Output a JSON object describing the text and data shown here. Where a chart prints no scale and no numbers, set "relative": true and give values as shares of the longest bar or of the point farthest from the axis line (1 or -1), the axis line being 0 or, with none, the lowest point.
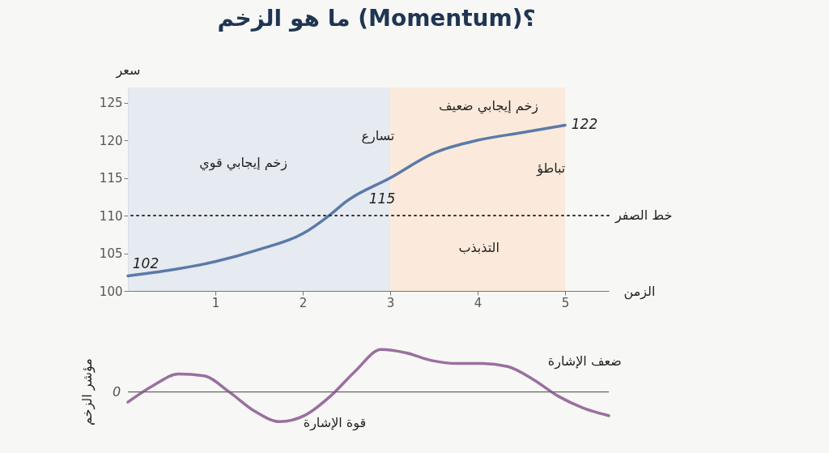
{
  "chart_data": [
    {
      "type": "line",
      "title": "ما هو الزخم (Momentum)؟",
      "xlabel": "الزمن",
      "ylabel": "سعر",
      "x": [
        0,
        0.5,
        1,
        1.5,
        2,
        2.3,
        2.5,
        3,
        3.5,
        4,
        4.5,
        5
      ],
      "series": [
        {
          "color": "#5b7aa8",
          "values": [
            102,
            102.8,
            103.9,
            105.5,
            107.6,
            110,
            111.9,
            115,
            118.3,
            120,
            121,
            122
          ]
        }
      ],
      "xlim": [
        0,
        5.5
      ],
      "ylim": [
        100,
        127
      ],
      "xticks": [
        1,
        2,
        3,
        4,
        5
      ],
      "yticks": [
        100,
        105,
        110,
        115,
        120,
        125
      ],
      "bands": [
        {
          "axis": "x",
          "from": 0,
          "to": 3,
          "color": "#e3e8f1"
        },
        {
          "axis": "x",
          "from": 3,
          "to": 5,
          "color": "#fbe8d8"
        }
      ],
      "ref_lines": [
        {
          "axis": "y",
          "value": 110,
          "label": "خط الصفر",
          "color": "#333333",
          "line_style": "dotted"
        }
      ],
      "annotations": [
        {
          "text": "102",
          "x": 0,
          "y": 102
        },
        {
          "text": "115",
          "x": 3,
          "y": 115
        },
        {
          "text": "122",
          "x": 5,
          "y": 122
        },
        "تسارع",
        "تباطؤ",
        "التذبذب",
        "زخم إيجابي قوي",
        "زخم إيجابي ضعيف"
      ]
    },
    {
      "type": "line",
      "relative": true,
      "ylabel": "مؤشر الزخم",
      "categories": [
        null,
        null,
        null,
        null,
        null,
        null,
        null,
        null,
        null,
        null,
        null,
        null,
        null,
        null,
        null,
        null,
        null,
        null,
        null,
        null
      ],
      "series": [
        {
          "color": "#9a6fa0",
          "values": [
            -0.24,
            0.15,
            0.42,
            0.38,
            0.0,
            -0.45,
            -0.7,
            -0.55,
            -0.1,
            0.5,
            1,
            0.92,
            0.74,
            0.67,
            0.67,
            0.6,
            0.3,
            -0.1,
            -0.38,
            -0.56
          ]
        }
      ],
      "annotations": [
        "قوة الإشارة",
        "ضعف الإشارة",
        "0"
      ]
    }
  ]
}
